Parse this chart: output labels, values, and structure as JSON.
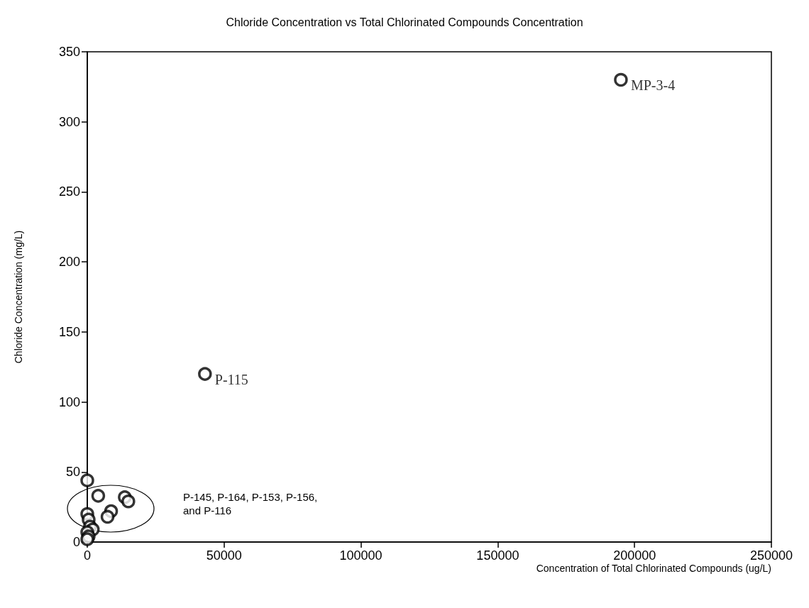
{
  "chart_data": {
    "type": "scatter",
    "title": "Chloride Concentration vs Total Chlorinated Compounds Concentration",
    "xlabel": "Concentration of Total Chlorinated Compounds (ug/L)",
    "ylabel": "Chloride Concentration (mg/L)",
    "x": [
      195000,
      43000,
      0,
      4000,
      13700,
      15000,
      8700,
      7400,
      0,
      500,
      1000,
      2000,
      0,
      500,
      0
    ],
    "values": [
      330,
      120,
      44,
      33,
      32,
      29,
      22,
      18,
      20,
      16,
      11,
      9,
      7,
      4,
      2
    ],
    "color": "#000000",
    "marker": "circle",
    "grid": false,
    "xlim": [
      0,
      250000
    ],
    "xticks": [
      0,
      50000,
      100000,
      150000,
      200000,
      250000
    ],
    "ylim": [
      0,
      350
    ],
    "yticks": [
      0,
      50,
      100,
      150,
      200,
      250,
      300,
      350
    ],
    "annotations": [
      {
        "text": "MP-3-4",
        "x": 195000,
        "y": 330
      },
      {
        "text": "P-115",
        "x": 43000,
        "y": 120
      },
      "P-145, P-164, P-153, P-156,\nand P-116"
    ]
  }
}
